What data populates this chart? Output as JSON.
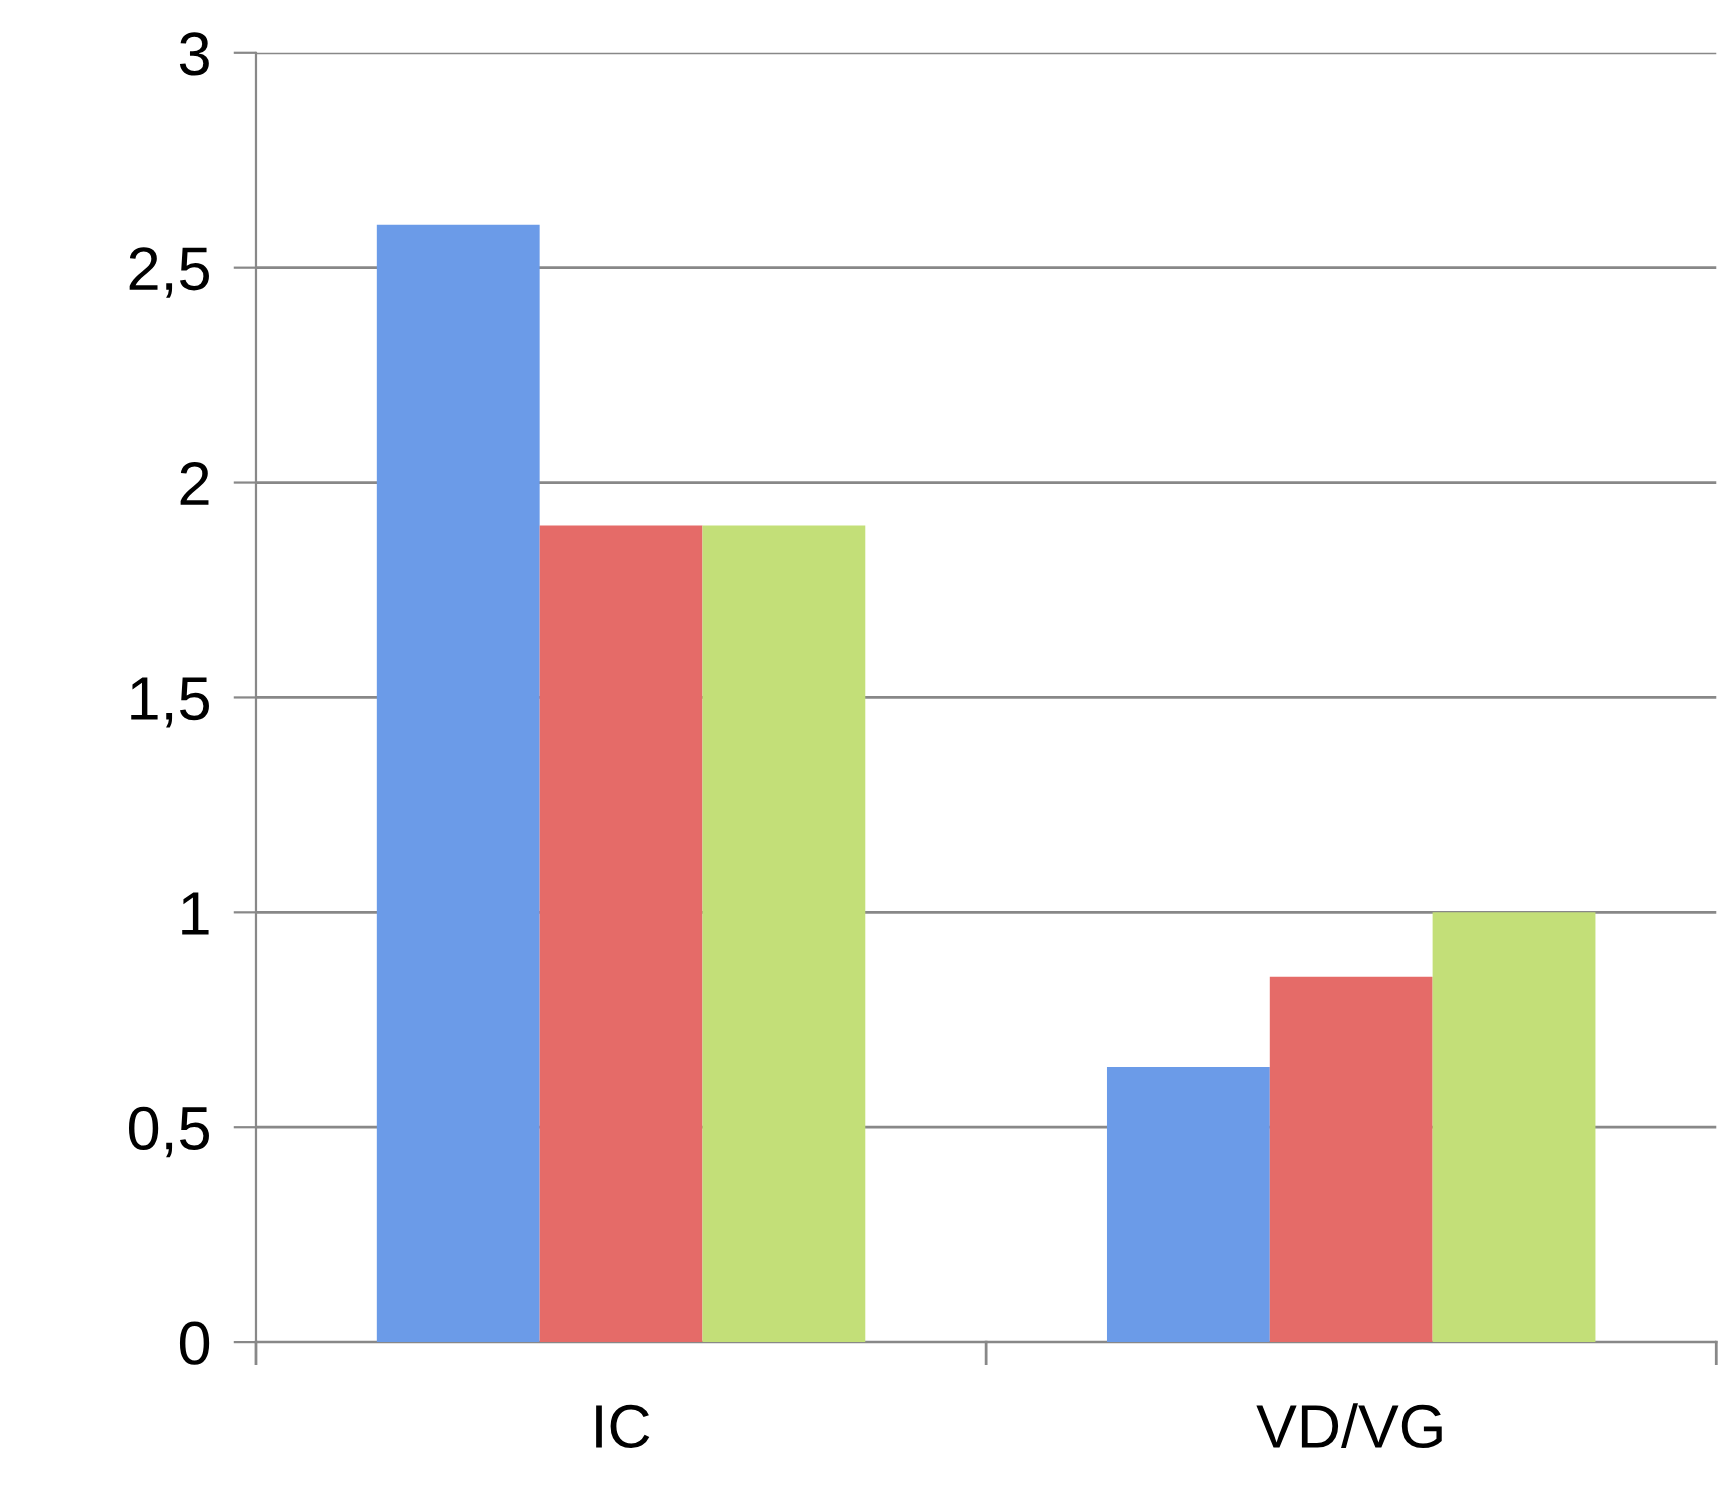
{
  "chart_data": {
    "type": "bar",
    "categories": [
      "IC",
      "VD/VG"
    ],
    "series": [
      {
        "color": "#6b9be8",
        "values": [
          2.6,
          0.64
        ]
      },
      {
        "color": "#e56b68",
        "values": [
          1.9,
          0.85
        ]
      },
      {
        "color": "#c3df78",
        "values": [
          1.9,
          1.0
        ]
      }
    ],
    "ylim": [
      0,
      3
    ],
    "yticks": [
      0,
      {
        "value": 0.5,
        "label": "0,5"
      },
      1,
      {
        "value": 1.5,
        "label": "1,5"
      },
      2,
      {
        "value": 2.5,
        "label": "2,5"
      },
      3
    ],
    "grid": "y",
    "legend": false
  }
}
